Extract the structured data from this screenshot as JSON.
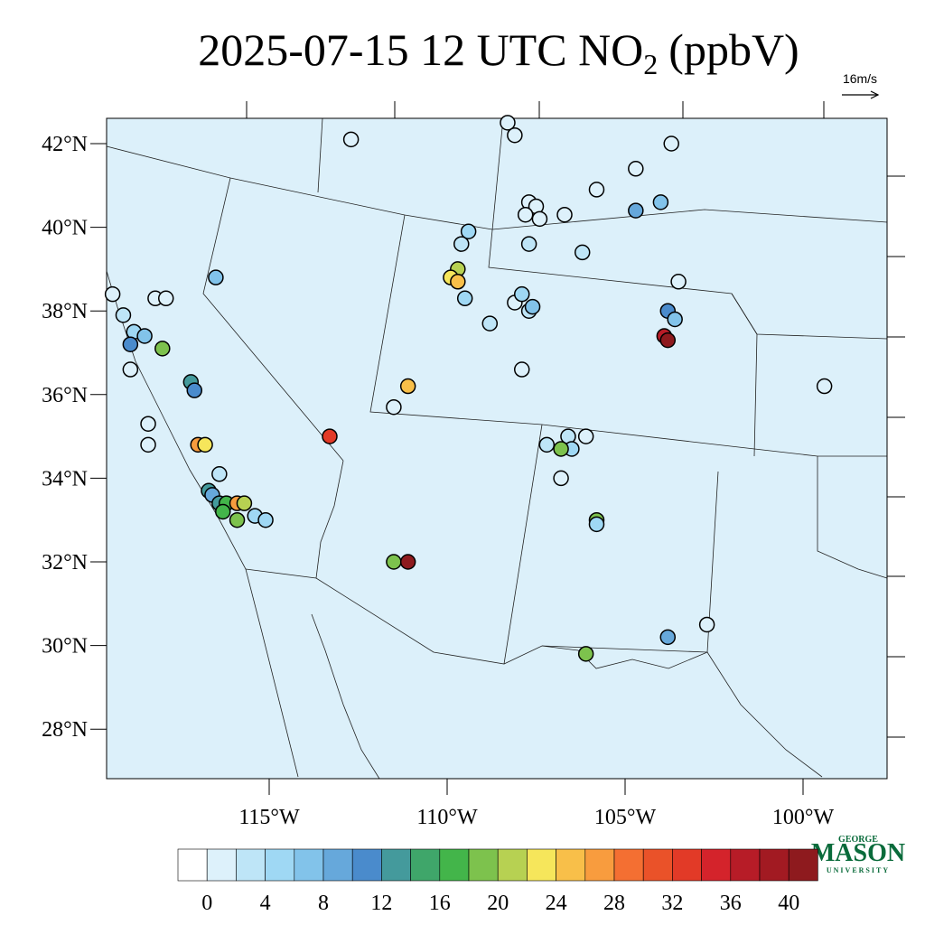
{
  "header": {
    "title": {
      "main": "2025-07-15 12 UTC NO",
      "subscript": "2",
      "suffix": "(ppbV)"
    },
    "wind_reference": "16m/s"
  },
  "map": {
    "lon_ticks": [
      {
        "value": -115,
        "label": "115°W"
      },
      {
        "value": -110,
        "label": "110°W"
      },
      {
        "value": -105,
        "label": "105°W"
      },
      {
        "value": -100,
        "label": "100°W"
      }
    ],
    "lat_ticks": [
      {
        "value": 42,
        "label": "42°N"
      },
      {
        "value": 40,
        "label": "40°N"
      },
      {
        "value": 38,
        "label": "38°N"
      },
      {
        "value": 36,
        "label": "36°N"
      },
      {
        "value": 34,
        "label": "34°N"
      },
      {
        "value": 32,
        "label": "32°N"
      },
      {
        "value": 30,
        "label": "30°N"
      },
      {
        "value": 28,
        "label": "28°N"
      }
    ],
    "stations": [
      {
        "lon": -112.7,
        "lat": 42.1,
        "value": 0
      },
      {
        "lon": -108.3,
        "lat": 42.5,
        "value": 0
      },
      {
        "lon": -108.1,
        "lat": 42.2,
        "value": 0
      },
      {
        "lon": -103.7,
        "lat": 42.0,
        "value": 0
      },
      {
        "lon": -104.7,
        "lat": 41.4,
        "value": 0
      },
      {
        "lon": -105.8,
        "lat": 40.9,
        "value": 0
      },
      {
        "lon": -104.0,
        "lat": 40.6,
        "value": 6
      },
      {
        "lon": -104.7,
        "lat": 40.4,
        "value": 8
      },
      {
        "lon": -107.7,
        "lat": 40.6,
        "value": 0
      },
      {
        "lon": -107.5,
        "lat": 40.5,
        "value": 0
      },
      {
        "lon": -107.8,
        "lat": 40.3,
        "value": 0
      },
      {
        "lon": -107.4,
        "lat": 40.2,
        "value": 0
      },
      {
        "lon": -106.7,
        "lat": 40.3,
        "value": 0
      },
      {
        "lon": -109.4,
        "lat": 39.9,
        "value": 4
      },
      {
        "lon": -109.6,
        "lat": 39.6,
        "value": 2
      },
      {
        "lon": -107.7,
        "lat": 39.6,
        "value": 2
      },
      {
        "lon": -106.2,
        "lat": 39.4,
        "value": 2
      },
      {
        "lon": -103.5,
        "lat": 38.7,
        "value": 0
      },
      {
        "lon": -109.7,
        "lat": 39.0,
        "value": 20
      },
      {
        "lon": -109.9,
        "lat": 38.8,
        "value": 22
      },
      {
        "lon": -109.7,
        "lat": 38.7,
        "value": 24
      },
      {
        "lon": -109.5,
        "lat": 38.3,
        "value": 4
      },
      {
        "lon": -116.5,
        "lat": 38.8,
        "value": 6
      },
      {
        "lon": -119.4,
        "lat": 38.4,
        "value": 0
      },
      {
        "lon": -118.2,
        "lat": 38.3,
        "value": 0
      },
      {
        "lon": -117.9,
        "lat": 38.3,
        "value": 0
      },
      {
        "lon": -108.1,
        "lat": 38.2,
        "value": 0
      },
      {
        "lon": -107.9,
        "lat": 38.4,
        "value": 4
      },
      {
        "lon": -107.7,
        "lat": 38.0,
        "value": 2
      },
      {
        "lon": -107.6,
        "lat": 38.1,
        "value": 6
      },
      {
        "lon": -103.8,
        "lat": 38.0,
        "value": 10
      },
      {
        "lon": -103.6,
        "lat": 37.8,
        "value": 6
      },
      {
        "lon": -103.9,
        "lat": 37.4,
        "value": 36
      },
      {
        "lon": -103.8,
        "lat": 37.3,
        "value": 40
      },
      {
        "lon": -108.8,
        "lat": 37.7,
        "value": 2
      },
      {
        "lon": -119.1,
        "lat": 37.9,
        "value": 2
      },
      {
        "lon": -118.8,
        "lat": 37.5,
        "value": 4
      },
      {
        "lon": -118.5,
        "lat": 37.4,
        "value": 6
      },
      {
        "lon": -118.9,
        "lat": 37.2,
        "value": 10
      },
      {
        "lon": -118.0,
        "lat": 37.1,
        "value": 18
      },
      {
        "lon": -118.9,
        "lat": 36.6,
        "value": 0
      },
      {
        "lon": -107.9,
        "lat": 36.6,
        "value": 0
      },
      {
        "lon": -117.2,
        "lat": 36.3,
        "value": 12
      },
      {
        "lon": -117.1,
        "lat": 36.1,
        "value": 10
      },
      {
        "lon": -111.1,
        "lat": 36.2,
        "value": 24
      },
      {
        "lon": -111.5,
        "lat": 35.7,
        "value": 0
      },
      {
        "lon": -99.4,
        "lat": 36.2,
        "value": 0
      },
      {
        "lon": -118.4,
        "lat": 35.3,
        "value": 0
      },
      {
        "lon": -118.4,
        "lat": 34.8,
        "value": 0
      },
      {
        "lon": -117.0,
        "lat": 34.8,
        "value": 26
      },
      {
        "lon": -116.8,
        "lat": 34.8,
        "value": 22
      },
      {
        "lon": -113.3,
        "lat": 35.0,
        "value": 32
      },
      {
        "lon": -107.2,
        "lat": 34.8,
        "value": 2
      },
      {
        "lon": -106.6,
        "lat": 35.0,
        "value": 2
      },
      {
        "lon": -106.1,
        "lat": 35.0,
        "value": 0
      },
      {
        "lon": -106.5,
        "lat": 34.7,
        "value": 4
      },
      {
        "lon": -106.8,
        "lat": 34.7,
        "value": 18
      },
      {
        "lon": -106.8,
        "lat": 34.0,
        "value": 0
      },
      {
        "lon": -116.4,
        "lat": 34.1,
        "value": 2
      },
      {
        "lon": -116.7,
        "lat": 33.7,
        "value": 12
      },
      {
        "lon": -116.6,
        "lat": 33.6,
        "value": 8
      },
      {
        "lon": -116.4,
        "lat": 33.4,
        "value": 12
      },
      {
        "lon": -116.2,
        "lat": 33.4,
        "value": 16
      },
      {
        "lon": -115.9,
        "lat": 33.4,
        "value": 26
      },
      {
        "lon": -115.7,
        "lat": 33.4,
        "value": 20
      },
      {
        "lon": -115.9,
        "lat": 33.0,
        "value": 18
      },
      {
        "lon": -116.3,
        "lat": 33.2,
        "value": 16
      },
      {
        "lon": -115.4,
        "lat": 33.1,
        "value": 4
      },
      {
        "lon": -115.1,
        "lat": 33.0,
        "value": 4
      },
      {
        "lon": -105.8,
        "lat": 33.0,
        "value": 18
      },
      {
        "lon": -105.8,
        "lat": 32.9,
        "value": 4
      },
      {
        "lon": -111.5,
        "lat": 32.0,
        "value": 18
      },
      {
        "lon": -111.1,
        "lat": 32.0,
        "value": 40
      },
      {
        "lon": -102.7,
        "lat": 30.5,
        "value": 0
      },
      {
        "lon": -103.8,
        "lat": 30.2,
        "value": 8
      },
      {
        "lon": -106.1,
        "lat": 29.8,
        "value": 18
      }
    ]
  },
  "colorbar": {
    "levels": [
      0,
      2,
      4,
      6,
      8,
      10,
      12,
      14,
      16,
      18,
      20,
      22,
      24,
      26,
      28,
      30,
      32,
      34,
      36,
      38,
      40
    ],
    "colors": [
      "#ffffff",
      "#ddf1fb",
      "#bee5f7",
      "#9fd8f4",
      "#82c3ea",
      "#66a8db",
      "#4a8bcc",
      "#449a9c",
      "#3fa66a",
      "#43b54a",
      "#7dc24d",
      "#b7d152",
      "#f6e65b",
      "#f8bf49",
      "#f89c3e",
      "#f46f32",
      "#ea5229",
      "#e23a27",
      "#d4232b",
      "#b71c27",
      "#a21a22",
      "#8e1a1e"
    ],
    "ticks": [
      0,
      4,
      8,
      12,
      16,
      20,
      24,
      28,
      32,
      36,
      40
    ]
  },
  "logo": {
    "top": "GEORGE",
    "main": "MASON",
    "bottom": "UNIVERSITY"
  }
}
